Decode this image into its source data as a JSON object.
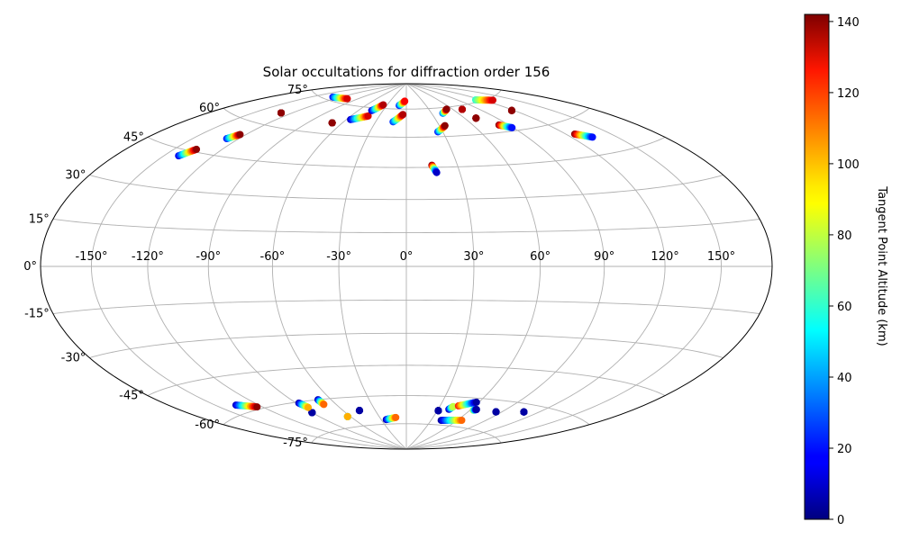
{
  "chart_data": {
    "type": "scatter",
    "projection": "hammer",
    "title": "Solar occultations for diffraction order 156",
    "colorbar": {
      "label": "Tangent Point Altitude (km)",
      "colormap": "jet",
      "min": 0,
      "max": 142,
      "ticks": [
        "0",
        "20",
        "40",
        "60",
        "80",
        "100",
        "120",
        "140"
      ]
    },
    "lon_ticks": [
      {
        "value": -150,
        "label": "-150°"
      },
      {
        "value": -120,
        "label": "-120°"
      },
      {
        "value": -90,
        "label": "-90°"
      },
      {
        "value": -60,
        "label": "-60°"
      },
      {
        "value": -30,
        "label": "-30°"
      },
      {
        "value": 0,
        "label": "0°"
      },
      {
        "value": 30,
        "label": "30°"
      },
      {
        "value": 60,
        "label": "60°"
      },
      {
        "value": 90,
        "label": "90°"
      },
      {
        "value": 120,
        "label": "120°"
      },
      {
        "value": 150,
        "label": "150°"
      }
    ],
    "lat_ticks": [
      {
        "value": 75,
        "label": "75°"
      },
      {
        "value": 60,
        "label": "60°"
      },
      {
        "value": 45,
        "label": "45°"
      },
      {
        "value": 30,
        "label": "30°"
      },
      {
        "value": 15,
        "label": "15°"
      },
      {
        "value": 0,
        "label": "0°"
      },
      {
        "value": -15,
        "label": "-15°"
      },
      {
        "value": -30,
        "label": "-30°"
      },
      {
        "value": -45,
        "label": "-45°"
      },
      {
        "value": -60,
        "label": "-60°"
      },
      {
        "value": -75,
        "label": "-75°"
      }
    ],
    "grid": true,
    "legend": "none",
    "occultations": [
      {
        "lon_start": -141,
        "lat_start": 42.5,
        "lon_end": -136,
        "lat_end": 46.0,
        "alt_start": 15,
        "alt_end": 140
      },
      {
        "lon_start": -128,
        "lat_start": 52.0,
        "lon_end": -124,
        "lat_end": 54.5,
        "alt_start": 20,
        "alt_end": 140
      },
      {
        "lon_start": -129,
        "lat_start": 65.7,
        "lon_end": -129,
        "lat_end": 65.7,
        "alt_start": 140,
        "alt_end": 140
      },
      {
        "lon_start": -129,
        "lat_start": 76.5,
        "lon_end": -105,
        "lat_end": 77.5,
        "alt_start": 20,
        "alt_end": 130
      },
      {
        "lon_start": -69,
        "lat_start": 65.5,
        "lon_end": -69,
        "lat_end": 65.5,
        "alt_start": 140,
        "alt_end": 140
      },
      {
        "lon_start": -56,
        "lat_start": 68.0,
        "lon_end": -42,
        "lat_end": 70.5,
        "alt_start": 10,
        "alt_end": 130
      },
      {
        "lon_start": -44,
        "lat_start": 73.5,
        "lon_end": -36,
        "lat_end": 77.0,
        "alt_start": 10,
        "alt_end": 135
      },
      {
        "lon_start": -13,
        "lat_start": 68.0,
        "lon_end": -4,
        "lat_end": 72.0,
        "alt_start": 25,
        "alt_end": 135
      },
      {
        "lon_start": -11,
        "lat_start": 77.0,
        "lon_end": -3,
        "lat_end": 79.5,
        "alt_start": 20,
        "alt_end": 125
      },
      {
        "lon_start": 26,
        "lat_start": 62.5,
        "lon_end": 35,
        "lat_end": 65.5,
        "alt_start": 20,
        "alt_end": 140
      },
      {
        "lon_start": 43,
        "lat_start": 72.0,
        "lon_end": 53,
        "lat_end": 74.0,
        "alt_start": 30,
        "alt_end": 140
      },
      {
        "lon_start": 71,
        "lat_start": 73.0,
        "lon_end": 71,
        "lat_end": 73.0,
        "alt_start": 135,
        "alt_end": 135
      },
      {
        "lon_start": 71,
        "lat_start": 68.0,
        "lon_end": 71,
        "lat_end": 68.0,
        "alt_start": 130,
        "alt_end": 140
      },
      {
        "lon_start": 82,
        "lat_start": 63.5,
        "lon_end": 89,
        "lat_end": 61.5,
        "alt_start": 140,
        "alt_end": 20
      },
      {
        "lon_start": 113,
        "lat_start": 76.0,
        "lon_end": 130,
        "lat_end": 74.0,
        "alt_start": 60,
        "alt_end": 130
      },
      {
        "lon_start": 118,
        "lat_start": 68.5,
        "lon_end": 118,
        "lat_end": 68.5,
        "alt_start": 140,
        "alt_end": 140
      },
      {
        "lon_start": 126,
        "lat_start": 54.5,
        "lon_end": 134,
        "lat_end": 52.0,
        "alt_start": 140,
        "alt_end": 20
      },
      {
        "lon_start": 15,
        "lat_start": 46.0,
        "lon_end": 17,
        "lat_end": 42.5,
        "alt_start": 140,
        "alt_end": 10
      },
      {
        "lon_start": -136,
        "lat_start": -56.5,
        "lon_end": -124,
        "lat_end": -59.0,
        "alt_start": 10,
        "alt_end": 140
      },
      {
        "lon_start": -90,
        "lat_start": -65.5,
        "lon_end": -90,
        "lat_end": -65.5,
        "alt_start": 5,
        "alt_end": 5
      },
      {
        "lon_start": -88,
        "lat_start": -60.5,
        "lon_end": -86,
        "lat_end": -63.0,
        "alt_start": 5,
        "alt_end": 100
      },
      {
        "lon_start": -70,
        "lat_start": -60.0,
        "lon_end": -70,
        "lat_end": -62.5,
        "alt_start": 5,
        "alt_end": 110
      },
      {
        "lon_start": -63,
        "lat_start": -69.5,
        "lon_end": -63,
        "lat_end": -69.5,
        "alt_start": 5,
        "alt_end": 100
      },
      {
        "lon_start": -45,
        "lat_start": -67.0,
        "lon_end": -45,
        "lat_end": -67.0,
        "alt_start": 5,
        "alt_end": 5
      },
      {
        "lon_start": -24,
        "lat_start": -72.5,
        "lon_end": -12,
        "lat_end": -71.5,
        "alt_start": 5,
        "alt_end": 110
      },
      {
        "lon_start": 31,
        "lat_start": -67.5,
        "lon_end": 31,
        "lat_end": -67.5,
        "alt_start": 5,
        "alt_end": 5
      },
      {
        "lon_start": 40,
        "lat_start": -66.5,
        "lon_end": 42,
        "lat_end": -65.0,
        "alt_start": 5,
        "alt_end": 80
      },
      {
        "lon_start": 42,
        "lat_start": -72.5,
        "lon_end": 65,
        "lat_end": -71.5,
        "alt_start": 5,
        "alt_end": 110
      },
      {
        "lon_start": 46,
        "lat_start": -64.5,
        "lon_end": 58,
        "lat_end": -62.0,
        "alt_start": 120,
        "alt_end": 5
      },
      {
        "lon_start": 63,
        "lat_start": -66.0,
        "lon_end": 65,
        "lat_end": -65.5,
        "alt_start": 80,
        "alt_end": 5
      },
      {
        "lon_start": 85,
        "lat_start": -65.5,
        "lon_end": 85,
        "lat_end": -65.5,
        "alt_start": 5,
        "alt_end": 5
      },
      {
        "lon_start": 108,
        "lat_start": -63.5,
        "lon_end": 108,
        "lat_end": -63.5,
        "alt_start": 5,
        "alt_end": 5
      }
    ]
  }
}
